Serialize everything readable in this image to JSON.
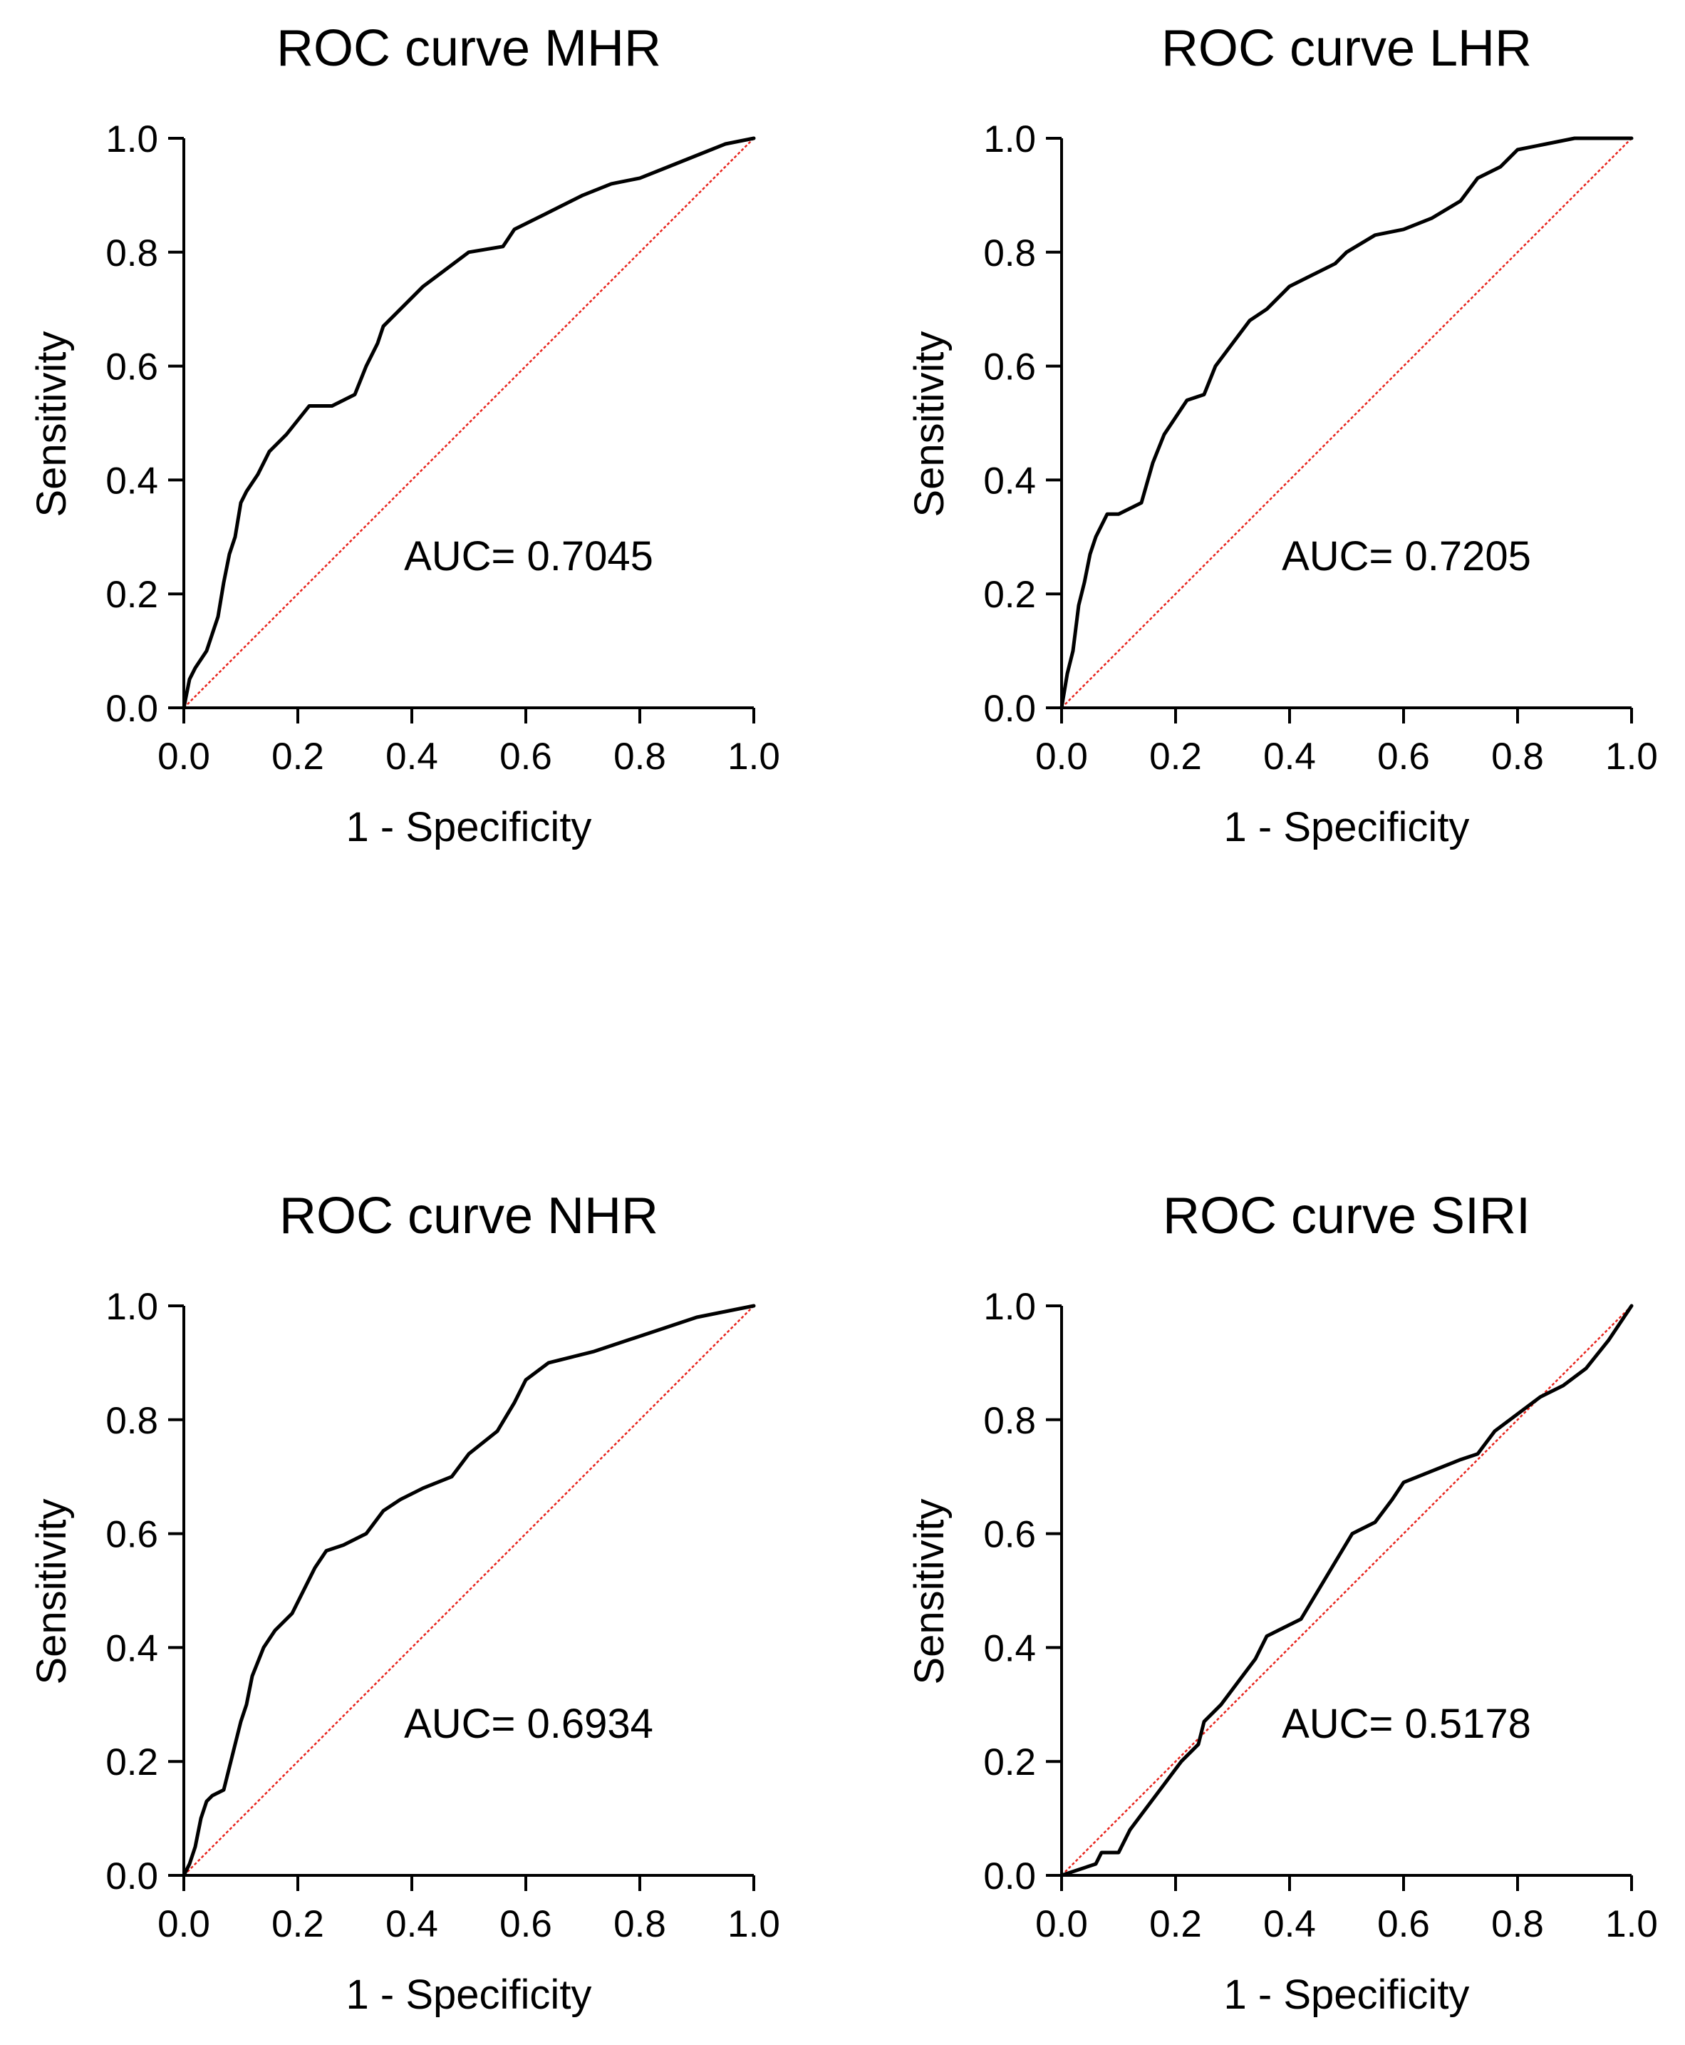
{
  "colors": {
    "curve": "#000000",
    "reference": "#e8251e",
    "axis": "#000000",
    "background": "#ffffff"
  },
  "chart_data": [
    {
      "type": "line",
      "title": "ROC curve MHR",
      "xlabel": "1 - Specificity",
      "ylabel": "Sensitivity",
      "xlim": [
        0,
        1
      ],
      "ylim": [
        0,
        1
      ],
      "xticks": [
        "0.0",
        "0.2",
        "0.4",
        "0.6",
        "0.8",
        "1.0"
      ],
      "yticks": [
        "0.0",
        "0.2",
        "0.4",
        "0.6",
        "0.8",
        "1.0"
      ],
      "annotation": "AUC= 0.7045",
      "grid": false,
      "legend": "none",
      "series": [
        {
          "name": "ROC",
          "x": [
            0,
            0.01,
            0.02,
            0.04,
            0.05,
            0.06,
            0.07,
            0.08,
            0.09,
            0.1,
            0.11,
            0.13,
            0.15,
            0.18,
            0.22,
            0.26,
            0.3,
            0.32,
            0.34,
            0.35,
            0.38,
            0.42,
            0.46,
            0.5,
            0.56,
            0.58,
            0.62,
            0.66,
            0.7,
            0.75,
            0.8,
            0.85,
            0.9,
            0.95,
            1.0
          ],
          "y": [
            0,
            0.05,
            0.07,
            0.1,
            0.13,
            0.16,
            0.22,
            0.27,
            0.3,
            0.36,
            0.38,
            0.41,
            0.45,
            0.48,
            0.53,
            0.53,
            0.55,
            0.6,
            0.64,
            0.67,
            0.7,
            0.74,
            0.77,
            0.8,
            0.81,
            0.84,
            0.86,
            0.88,
            0.9,
            0.92,
            0.93,
            0.95,
            0.97,
            0.99,
            1.0
          ]
        },
        {
          "name": "Reference",
          "x": [
            0,
            1
          ],
          "y": [
            0,
            1
          ]
        }
      ]
    },
    {
      "type": "line",
      "title": "ROC curve LHR",
      "xlabel": "1 - Specificity",
      "ylabel": "Sensitivity",
      "xlim": [
        0,
        1
      ],
      "ylim": [
        0,
        1
      ],
      "xticks": [
        "0.0",
        "0.2",
        "0.4",
        "0.6",
        "0.8",
        "1.0"
      ],
      "yticks": [
        "0.0",
        "0.2",
        "0.4",
        "0.6",
        "0.8",
        "1.0"
      ],
      "annotation": "AUC= 0.7205",
      "grid": false,
      "legend": "none",
      "series": [
        {
          "name": "ROC",
          "x": [
            0,
            0.01,
            0.02,
            0.03,
            0.04,
            0.05,
            0.06,
            0.07,
            0.08,
            0.1,
            0.14,
            0.16,
            0.18,
            0.2,
            0.22,
            0.25,
            0.27,
            0.3,
            0.33,
            0.36,
            0.4,
            0.44,
            0.48,
            0.5,
            0.55,
            0.6,
            0.65,
            0.7,
            0.73,
            0.77,
            0.8,
            0.85,
            0.9,
            0.95,
            1.0
          ],
          "y": [
            0,
            0.06,
            0.1,
            0.18,
            0.22,
            0.27,
            0.3,
            0.32,
            0.34,
            0.34,
            0.36,
            0.43,
            0.48,
            0.51,
            0.54,
            0.55,
            0.6,
            0.64,
            0.68,
            0.7,
            0.74,
            0.76,
            0.78,
            0.8,
            0.83,
            0.84,
            0.86,
            0.89,
            0.93,
            0.95,
            0.98,
            0.99,
            1.0,
            1.0,
            1.0
          ]
        },
        {
          "name": "Reference",
          "x": [
            0,
            1
          ],
          "y": [
            0,
            1
          ]
        }
      ]
    },
    {
      "type": "line",
      "title": "ROC curve NHR",
      "xlabel": "1 - Specificity",
      "ylabel": "Sensitivity",
      "xlim": [
        0,
        1
      ],
      "ylim": [
        0,
        1
      ],
      "xticks": [
        "0.0",
        "0.2",
        "0.4",
        "0.6",
        "0.8",
        "1.0"
      ],
      "yticks": [
        "0.0",
        "0.2",
        "0.4",
        "0.6",
        "0.8",
        "1.0"
      ],
      "annotation": "AUC= 0.6934",
      "grid": false,
      "legend": "none",
      "series": [
        {
          "name": "ROC",
          "x": [
            0,
            0.01,
            0.02,
            0.03,
            0.04,
            0.05,
            0.07,
            0.08,
            0.09,
            0.1,
            0.11,
            0.12,
            0.14,
            0.16,
            0.19,
            0.21,
            0.23,
            0.25,
            0.28,
            0.32,
            0.35,
            0.38,
            0.42,
            0.47,
            0.5,
            0.55,
            0.58,
            0.6,
            0.64,
            0.68,
            0.72,
            0.78,
            0.84,
            0.9,
            0.95,
            1.0
          ],
          "y": [
            0,
            0.02,
            0.05,
            0.1,
            0.13,
            0.14,
            0.15,
            0.19,
            0.23,
            0.27,
            0.3,
            0.35,
            0.4,
            0.43,
            0.46,
            0.5,
            0.54,
            0.57,
            0.58,
            0.6,
            0.64,
            0.66,
            0.68,
            0.7,
            0.74,
            0.78,
            0.83,
            0.87,
            0.9,
            0.91,
            0.92,
            0.94,
            0.96,
            0.98,
            0.99,
            1.0
          ]
        },
        {
          "name": "Reference",
          "x": [
            0,
            1
          ],
          "y": [
            0,
            1
          ]
        }
      ]
    },
    {
      "type": "line",
      "title": "ROC curve SIRI",
      "xlabel": "1 - Specificity",
      "ylabel": "Sensitivity",
      "xlim": [
        0,
        1
      ],
      "ylim": [
        0,
        1
      ],
      "xticks": [
        "0.0",
        "0.2",
        "0.4",
        "0.6",
        "0.8",
        "1.0"
      ],
      "yticks": [
        "0.0",
        "0.2",
        "0.4",
        "0.6",
        "0.8",
        "1.0"
      ],
      "annotation": "AUC= 0.5178",
      "grid": false,
      "legend": "none",
      "series": [
        {
          "name": "ROC",
          "x": [
            0,
            0.03,
            0.06,
            0.07,
            0.1,
            0.12,
            0.15,
            0.18,
            0.21,
            0.24,
            0.25,
            0.28,
            0.31,
            0.34,
            0.36,
            0.38,
            0.42,
            0.45,
            0.48,
            0.51,
            0.55,
            0.58,
            0.6,
            0.65,
            0.7,
            0.73,
            0.76,
            0.8,
            0.84,
            0.88,
            0.92,
            0.96,
            1.0
          ],
          "y": [
            0,
            0.01,
            0.02,
            0.04,
            0.04,
            0.08,
            0.12,
            0.16,
            0.2,
            0.23,
            0.27,
            0.3,
            0.34,
            0.38,
            0.42,
            0.43,
            0.45,
            0.5,
            0.55,
            0.6,
            0.62,
            0.66,
            0.69,
            0.71,
            0.73,
            0.74,
            0.78,
            0.81,
            0.84,
            0.86,
            0.89,
            0.94,
            1.0
          ]
        },
        {
          "name": "Reference",
          "x": [
            0,
            1
          ],
          "y": [
            0,
            1
          ]
        }
      ]
    }
  ]
}
